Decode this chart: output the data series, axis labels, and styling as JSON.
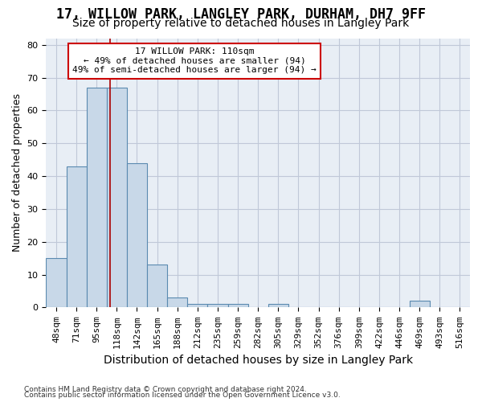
{
  "title1": "17, WILLOW PARK, LANGLEY PARK, DURHAM, DH7 9FF",
  "title2": "Size of property relative to detached houses in Langley Park",
  "xlabel": "Distribution of detached houses by size in Langley Park",
  "ylabel": "Number of detached properties",
  "footer1": "Contains HM Land Registry data © Crown copyright and database right 2024.",
  "footer2": "Contains public sector information licensed under the Open Government Licence v3.0.",
  "bin_labels": [
    "48sqm",
    "71sqm",
    "95sqm",
    "118sqm",
    "142sqm",
    "165sqm",
    "188sqm",
    "212sqm",
    "235sqm",
    "259sqm",
    "282sqm",
    "305sqm",
    "329sqm",
    "352sqm",
    "376sqm",
    "399sqm",
    "422sqm",
    "446sqm",
    "469sqm",
    "493sqm",
    "516sqm"
  ],
  "bar_values": [
    15,
    43,
    67,
    67,
    44,
    13,
    3,
    1,
    1,
    1,
    0,
    1,
    0,
    0,
    0,
    0,
    0,
    0,
    2,
    0,
    0
  ],
  "bar_color": "#c8d8e8",
  "bar_edge_color": "#5a8ab0",
  "vline_x": 2.65,
  "vline_color": "#aa0000",
  "annotation_line1": "17 WILLOW PARK: 110sqm",
  "annotation_line2": "← 49% of detached houses are smaller (94)",
  "annotation_line3": "49% of semi-detached houses are larger (94) →",
  "annotation_box_color": "#cc0000",
  "ylim": [
    0,
    82
  ],
  "yticks": [
    0,
    10,
    20,
    30,
    40,
    50,
    60,
    70,
    80
  ],
  "grid_color": "#c0c8d8",
  "bg_color": "#e8eef5",
  "title1_fontsize": 12,
  "title2_fontsize": 10,
  "xlabel_fontsize": 10,
  "ylabel_fontsize": 9,
  "tick_fontsize": 8
}
